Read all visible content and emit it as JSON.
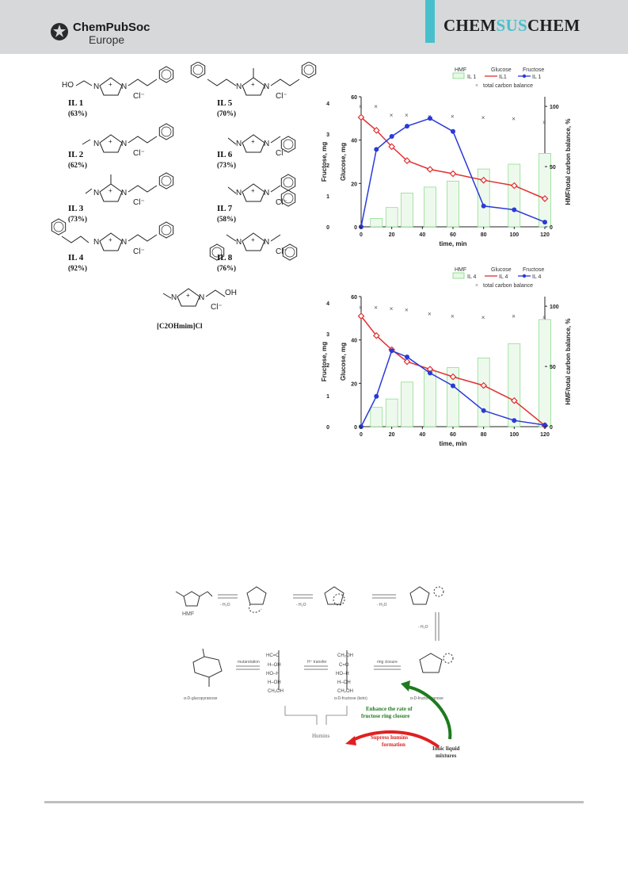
{
  "header": {
    "publisher_line1": "ChemPubSoc",
    "publisher_line2": "Europe",
    "journal_pre": "CHEM",
    "journal_mid": "SUS",
    "journal_post": "CHEM",
    "accent_color": "#48c0cc",
    "header_bg": "#d6d8da"
  },
  "structures": {
    "items": [
      {
        "label": "IL 1",
        "yield": "(63%)"
      },
      {
        "label": "IL 2",
        "yield": "(62%)"
      },
      {
        "label": "IL 3",
        "yield": "(73%)"
      },
      {
        "label": "IL 4",
        "yield": "(92%)"
      },
      {
        "label": "IL 5",
        "yield": "(70%)"
      },
      {
        "label": "IL 6",
        "yield": "(73%)"
      },
      {
        "label": "IL 7",
        "yield": "(58%)"
      },
      {
        "label": "IL 8",
        "yield": "(76%)"
      }
    ],
    "extra_label": "[C2OHmim]Cl",
    "ho": "HO",
    "oh": "OH",
    "n": "N",
    "cl": "Cl⁻",
    "plus": "+"
  },
  "chart_data": [
    {
      "type": "bar+line",
      "legend": {
        "hmf": "HMF",
        "il": "IL 1",
        "glucose": "Glucose",
        "glucose_il": "IL1",
        "fructose": "Fructose",
        "fructose_il": "IL 1",
        "carbon": "total carbon balance"
      },
      "xlabel": "time, min",
      "ylabel_left1": "Fructose, mg",
      "ylabel_left2": "Glucose, mg",
      "ylabel_right": "HMF/total carbon balance, %",
      "x_ticks": [
        "0",
        "20",
        "40",
        "60",
        "80",
        "100",
        "120"
      ],
      "glucose_ticks": [
        "0",
        "20",
        "40",
        "60"
      ],
      "fructose_ticks": [
        "0",
        "1",
        "2",
        "3",
        "4"
      ],
      "right_ticks": [
        "0",
        "50",
        "100"
      ],
      "xlim": [
        0,
        120
      ],
      "glucose_ylim": [
        0,
        60
      ],
      "fructose_ylim": [
        0,
        4.2
      ],
      "right_ylim": [
        0,
        108
      ],
      "x": [
        0,
        10,
        20,
        30,
        45,
        60,
        80,
        100,
        120
      ],
      "glucose": [
        50.5,
        44.5,
        37,
        30.5,
        26.5,
        24.5,
        21.5,
        19,
        13
      ],
      "fructose": [
        0,
        2.5,
        2.92,
        3.25,
        3.5,
        3.08,
        0.67,
        0.55,
        0.15
      ],
      "hmf_x": [
        10,
        20,
        30,
        45,
        60,
        80,
        100,
        120
      ],
      "hmf": [
        7,
        16,
        28,
        33,
        38,
        48,
        52,
        61
      ],
      "carbon_x": [
        0,
        10,
        20,
        30,
        45,
        60,
        80,
        100,
        120
      ],
      "carbon": [
        100,
        100,
        93,
        93,
        92,
        92,
        91,
        90,
        87
      ]
    },
    {
      "type": "bar+line",
      "legend": {
        "hmf": "HMF",
        "il": "IL 4",
        "glucose": "Glucose",
        "glucose_il": "IL 4",
        "fructose": "Fructose",
        "fructose_il": "IL 4",
        "carbon": "total carbon balance"
      },
      "xlabel": "time, min",
      "ylabel_left1": "Fructose, mg",
      "ylabel_left2": "Glucose, mg",
      "ylabel_right": "HMF/total carbon balance, %",
      "x_ticks": [
        "0",
        "20",
        "40",
        "60",
        "80",
        "100",
        "120"
      ],
      "glucose_ticks": [
        "0",
        "20",
        "40",
        "60"
      ],
      "fructose_ticks": [
        "0",
        "1",
        "2",
        "3",
        "4"
      ],
      "right_ticks": [
        "0",
        "50",
        "100"
      ],
      "xlim": [
        0,
        120
      ],
      "glucose_ylim": [
        0,
        60
      ],
      "fructose_ylim": [
        0,
        4.2
      ],
      "right_ylim": [
        0,
        108
      ],
      "x": [
        0,
        10,
        20,
        30,
        45,
        60,
        80,
        100,
        120
      ],
      "glucose": [
        51,
        42,
        35.5,
        30,
        26.5,
        23,
        19,
        12,
        0.5
      ],
      "fructose": [
        0,
        0.98,
        2.45,
        2.25,
        1.73,
        1.32,
        0.52,
        0.2,
        0.05
      ],
      "hmf_x": [
        10,
        20,
        30,
        45,
        60,
        80,
        100,
        120
      ],
      "hmf": [
        16,
        23,
        37,
        46,
        49,
        57,
        69,
        89
      ],
      "carbon_x": [
        0,
        10,
        20,
        30,
        45,
        60,
        80,
        100,
        120
      ],
      "carbon": [
        99,
        99,
        98,
        97,
        94,
        92,
        91,
        92,
        91
      ]
    }
  ],
  "scheme": {
    "hmf": "HMF",
    "h2o": "- H₂O",
    "glucopyranose": "α-D-glucopyranose",
    "fructose_keto": "α-D-fructose (keto)",
    "fructofuranose": "α-D-fructofuranose",
    "mutarotation": "mutarotation",
    "h_transfer": "H⁺ transfer",
    "ring_closure": "ring closure",
    "enhance": "Enhance the rate of fructose ring closure",
    "supress": "Supress humins formation",
    "humins": "Humins",
    "il_mixtures": "Ionic liquid mixtures",
    "green": "#1e7a1e",
    "red": "#e02020"
  }
}
